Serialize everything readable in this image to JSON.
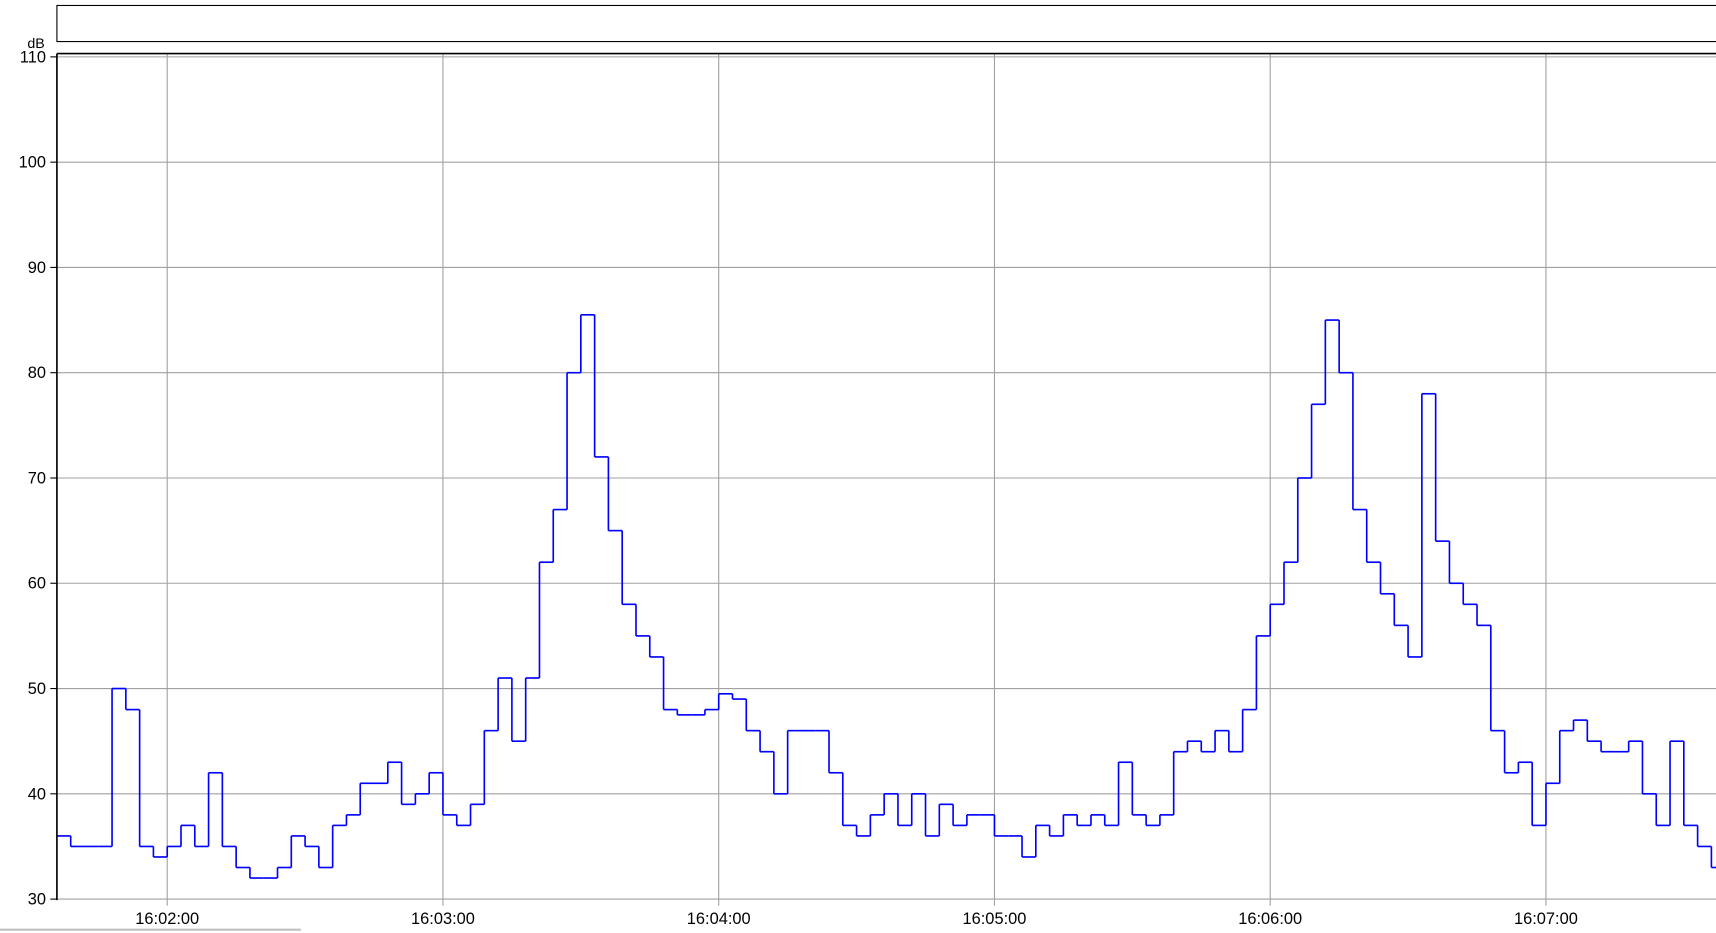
{
  "chart_data": {
    "type": "step",
    "y_unit": "dB",
    "x": [
      "16:01:36",
      "16:01:39",
      "16:01:42",
      "16:01:45",
      "16:01:48",
      "16:01:51",
      "16:01:54",
      "16:01:57",
      "16:02:00",
      "16:02:03",
      "16:02:06",
      "16:02:09",
      "16:02:12",
      "16:02:15",
      "16:02:18",
      "16:02:21",
      "16:02:24",
      "16:02:27",
      "16:02:30",
      "16:02:33",
      "16:02:36",
      "16:02:39",
      "16:02:42",
      "16:02:45",
      "16:02:48",
      "16:02:51",
      "16:02:54",
      "16:02:57",
      "16:03:00",
      "16:03:03",
      "16:03:06",
      "16:03:09",
      "16:03:12",
      "16:03:15",
      "16:03:18",
      "16:03:21",
      "16:03:24",
      "16:03:27",
      "16:03:30",
      "16:03:33",
      "16:03:36",
      "16:03:39",
      "16:03:42",
      "16:03:45",
      "16:03:48",
      "16:03:51",
      "16:03:54",
      "16:03:57",
      "16:04:00",
      "16:04:03",
      "16:04:06",
      "16:04:09",
      "16:04:12",
      "16:04:15",
      "16:04:18",
      "16:04:21",
      "16:04:24",
      "16:04:27",
      "16:04:30",
      "16:04:33",
      "16:04:36",
      "16:04:39",
      "16:04:42",
      "16:04:45",
      "16:04:48",
      "16:04:51",
      "16:04:54",
      "16:04:57",
      "16:05:00",
      "16:05:03",
      "16:05:06",
      "16:05:09",
      "16:05:12",
      "16:05:15",
      "16:05:18",
      "16:05:21",
      "16:05:24",
      "16:05:27",
      "16:05:30",
      "16:05:33",
      "16:05:36",
      "16:05:39",
      "16:05:42",
      "16:05:45",
      "16:05:48",
      "16:05:51",
      "16:05:54",
      "16:05:57",
      "16:06:00",
      "16:06:03",
      "16:06:06",
      "16:06:09",
      "16:06:12",
      "16:06:15",
      "16:06:18",
      "16:06:21",
      "16:06:24",
      "16:06:27",
      "16:06:30",
      "16:06:33",
      "16:06:36",
      "16:06:39",
      "16:06:42",
      "16:06:45",
      "16:06:48",
      "16:06:51",
      "16:06:54",
      "16:06:57",
      "16:07:00",
      "16:07:03",
      "16:07:06",
      "16:07:09",
      "16:07:12",
      "16:07:15",
      "16:07:18",
      "16:07:21",
      "16:07:24",
      "16:07:27",
      "16:07:30",
      "16:07:33",
      "16:07:36"
    ],
    "series": [
      {
        "color": "#0000ff",
        "values": [
          36,
          35,
          35,
          35,
          50,
          48,
          35,
          34,
          35,
          37,
          35,
          42,
          35,
          33,
          32,
          32,
          33,
          36,
          35,
          33,
          37,
          38,
          41,
          41,
          43,
          39,
          40,
          42,
          38,
          37,
          39,
          46,
          51,
          45,
          51,
          62,
          67,
          80,
          85.5,
          72,
          65,
          58,
          55,
          53,
          48,
          47.5,
          47.5,
          48,
          49.5,
          49,
          46,
          44,
          40,
          46,
          46,
          46,
          42,
          37,
          36,
          38,
          40,
          37,
          40,
          36,
          39,
          37,
          38,
          38,
          36,
          36,
          34,
          37,
          36,
          38,
          37,
          38,
          37,
          43,
          38,
          37,
          38,
          44,
          45,
          44,
          46,
          44,
          48,
          55,
          58,
          62,
          70,
          77,
          85,
          80,
          67,
          62,
          59,
          56,
          53,
          78,
          64,
          60,
          58,
          56,
          46,
          42,
          43,
          37,
          41,
          46,
          47,
          45,
          44,
          44,
          45,
          40,
          37,
          45,
          37,
          35,
          33
        ]
      }
    ],
    "xlim": [
      "16:01:36",
      "16:07:37"
    ],
    "xticks": [
      "16:02:00",
      "16:03:00",
      "16:04:00",
      "16:05:00",
      "16:06:00",
      "16:07:00"
    ],
    "ylim": [
      30,
      110
    ],
    "yticks": [
      30,
      40,
      50,
      60,
      70,
      80,
      90,
      100,
      110
    ],
    "grid": true
  }
}
